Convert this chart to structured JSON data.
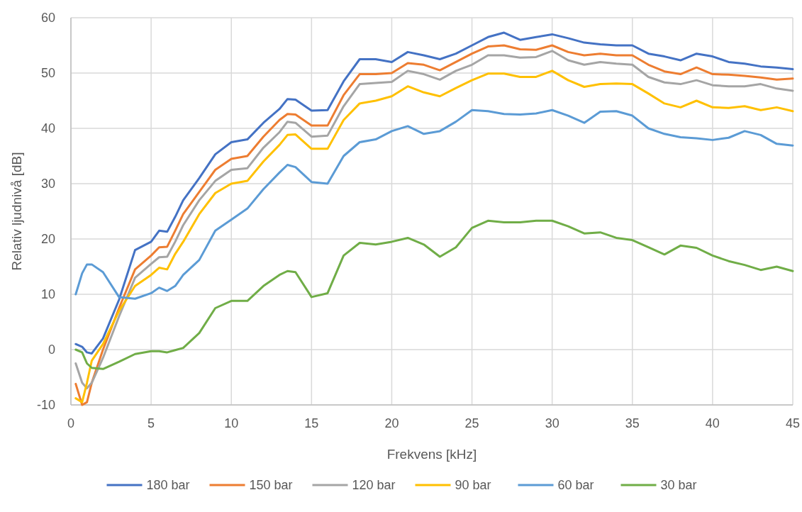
{
  "chart_data": {
    "type": "line",
    "xlabel": "Frekvens [kHz]",
    "ylabel": "Relativ ljudnivå [dB]",
    "x": [
      0.3,
      0.7,
      1,
      1.3,
      2,
      3,
      4,
      5,
      5.5,
      6,
      6.5,
      7,
      8,
      9,
      10,
      11,
      12,
      13,
      13.5,
      14,
      15,
      16,
      17,
      18,
      19,
      20,
      21,
      22,
      23,
      24,
      25,
      26,
      27,
      28,
      29,
      30,
      31,
      32,
      33,
      34,
      35,
      36,
      37,
      38,
      39,
      40,
      41,
      42,
      43,
      44,
      45
    ],
    "xlim": [
      0,
      45
    ],
    "xticks": [
      0,
      5,
      10,
      15,
      20,
      25,
      30,
      35,
      40,
      45
    ],
    "ylim": [
      -10,
      60
    ],
    "yticks": [
      -10,
      0,
      10,
      20,
      30,
      40,
      50,
      60
    ],
    "grid": true,
    "legend": "bottom",
    "marker": "none",
    "line_style": "solid",
    "series": [
      {
        "name": "180 bar",
        "color": "#4472c4",
        "values": [
          1,
          0.5,
          -0.5,
          -0.7,
          2,
          9,
          18,
          19.5,
          21.5,
          21.3,
          24,
          27,
          31,
          35.3,
          37.5,
          38,
          41,
          43.5,
          45.3,
          45.2,
          43.2,
          43.3,
          48.5,
          52.5,
          52.5,
          52,
          53.8,
          53.2,
          52.5,
          53.5,
          55,
          56.5,
          57.3,
          56,
          56.5,
          57,
          56.3,
          55.5,
          55.2,
          55,
          55,
          53.5,
          53,
          52.3,
          53.5,
          53,
          52,
          51.7,
          51.2,
          51,
          50.7
        ]
      },
      {
        "name": "150 bar",
        "color": "#ed7d31",
        "values": [
          -6.2,
          -10,
          -9.5,
          -6,
          0,
          7.5,
          14.5,
          17,
          18.5,
          18.6,
          21.5,
          24.5,
          28.5,
          32.5,
          34.5,
          35,
          38.5,
          41.5,
          42.6,
          42.5,
          40.5,
          40.5,
          46,
          49.8,
          49.8,
          50,
          51.8,
          51.5,
          50.5,
          52,
          53.5,
          54.8,
          55,
          54.3,
          54.2,
          55,
          53.8,
          53.2,
          53.5,
          53.2,
          53.2,
          51.5,
          50.3,
          49.8,
          51,
          49.8,
          49.7,
          49.5,
          49.2,
          48.8,
          49
        ]
      },
      {
        "name": "120 bar",
        "color": "#a5a5a5",
        "values": [
          -2.5,
          -6,
          -7,
          -6,
          -1.5,
          6,
          13,
          15.5,
          16.7,
          16.8,
          19.5,
          22.5,
          27,
          30.5,
          32.5,
          32.8,
          36.5,
          39.3,
          41.2,
          41,
          38.5,
          38.7,
          44,
          48,
          48.2,
          48.4,
          50.4,
          49.8,
          48.8,
          50.4,
          51.5,
          53.2,
          53.2,
          52.8,
          52.9,
          54,
          52.3,
          51.5,
          52,
          51.7,
          51.5,
          49.3,
          48.3,
          48,
          48.7,
          47.8,
          47.6,
          47.6,
          48,
          47.2,
          46.8
        ]
      },
      {
        "name": "90 bar",
        "color": "#ffc000",
        "values": [
          -8.8,
          -9.5,
          -6,
          -2,
          1,
          7,
          11.5,
          13.5,
          14.8,
          14.5,
          17.3,
          19.5,
          24.5,
          28.3,
          30,
          30.5,
          34,
          37,
          38.8,
          38.9,
          36.3,
          36.3,
          41.5,
          44.5,
          45,
          45.8,
          47.6,
          46.5,
          45.8,
          47.3,
          48.7,
          49.9,
          49.9,
          49.3,
          49.3,
          50.4,
          48.7,
          47.5,
          48,
          48.1,
          48,
          46.3,
          44.5,
          43.8,
          45,
          43.8,
          43.7,
          44,
          43.3,
          43.8,
          43.1
        ]
      },
      {
        "name": "60 bar",
        "color": "#5b9bd5",
        "values": [
          10,
          13.8,
          15.4,
          15.4,
          14,
          9.5,
          9.2,
          10.2,
          11.2,
          10.6,
          11.5,
          13.5,
          16.2,
          21.5,
          23.5,
          25.5,
          29,
          32,
          33.4,
          33,
          30.3,
          30,
          35,
          37.5,
          38,
          39.5,
          40.4,
          39,
          39.5,
          41.2,
          43.3,
          43.1,
          42.6,
          42.5,
          42.7,
          43.3,
          42.3,
          41,
          43,
          43.1,
          42.3,
          40,
          39,
          38.4,
          38.2,
          37.9,
          38.3,
          39.5,
          38.8,
          37.2,
          36.9
        ]
      },
      {
        "name": "30 bar",
        "color": "#70ad47",
        "values": [
          0,
          -0.5,
          -2.5,
          -3.3,
          -3.5,
          -2.2,
          -0.8,
          -0.3,
          -0.3,
          -0.5,
          -0.1,
          0.3,
          3,
          7.5,
          8.8,
          8.8,
          11.5,
          13.5,
          14.2,
          14,
          9.5,
          10.2,
          17,
          19.3,
          19,
          19.5,
          20.2,
          19,
          16.8,
          18.5,
          22,
          23.3,
          23,
          23,
          23.3,
          23.3,
          22.3,
          21,
          21.2,
          20.2,
          19.8,
          18.5,
          17.2,
          18.8,
          18.4,
          17,
          16,
          15.3,
          14.4,
          15,
          14.2
        ]
      }
    ]
  }
}
